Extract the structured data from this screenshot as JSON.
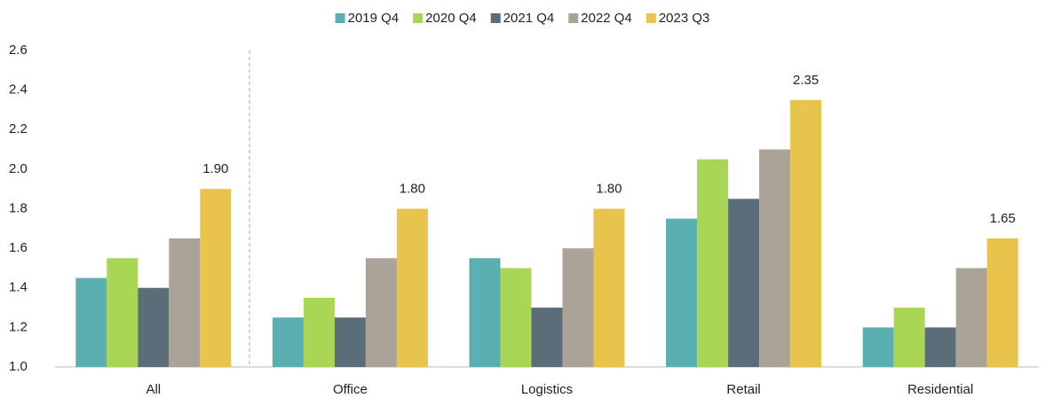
{
  "chart_data": {
    "type": "bar",
    "categories": [
      "All",
      "Office",
      "Logistics",
      "Retail",
      "Residential"
    ],
    "series": [
      {
        "name": "2019 Q4",
        "color": "#5aafb0",
        "values": [
          1.45,
          1.25,
          1.55,
          1.75,
          1.2
        ]
      },
      {
        "name": "2020 Q4",
        "color": "#a9d654",
        "values": [
          1.55,
          1.35,
          1.5,
          2.05,
          1.3
        ]
      },
      {
        "name": "2021 Q4",
        "color": "#5b6d78",
        "values": [
          1.4,
          1.25,
          1.3,
          1.85,
          1.2
        ]
      },
      {
        "name": "2022 Q4",
        "color": "#aca398",
        "values": [
          1.65,
          1.55,
          1.6,
          2.1,
          1.5
        ]
      },
      {
        "name": "2023 Q3",
        "color": "#e8c44c",
        "values": [
          1.9,
          1.8,
          1.8,
          2.35,
          1.65
        ],
        "value_labels": [
          "1.90",
          "1.80",
          "1.80",
          "2.35",
          "1.65"
        ]
      }
    ],
    "ylim": [
      1.0,
      2.6
    ],
    "yticks": [
      {
        "value": 1.0,
        "label": "1.0"
      },
      1.2,
      1.4,
      1.6,
      1.8,
      {
        "value": 2.0,
        "label": "2.0"
      },
      2.2,
      2.4,
      2.6
    ],
    "grid": false,
    "legend": "top"
  }
}
